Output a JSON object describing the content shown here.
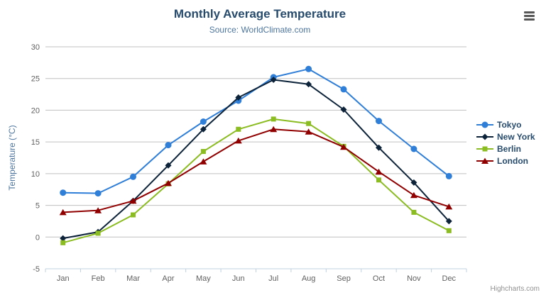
{
  "chart_data": {
    "type": "line",
    "title": "Monthly Average Temperature",
    "subtitle": "Source: WorldClimate.com",
    "categories": [
      "Jan",
      "Feb",
      "Mar",
      "Apr",
      "May",
      "Jun",
      "Jul",
      "Aug",
      "Sep",
      "Oct",
      "Nov",
      "Dec"
    ],
    "xlabel": "",
    "ylabel": "Temperature (°C)",
    "ylim": [
      -5,
      30
    ],
    "y_ticks": [
      -5,
      0,
      5,
      10,
      15,
      20,
      25,
      30
    ],
    "grid": "horizontal",
    "legend_position": "right",
    "series": [
      {
        "name": "Tokyo",
        "marker": "circle",
        "color": "#2f7ed8",
        "values": [
          7.0,
          6.9,
          9.5,
          14.5,
          18.2,
          21.5,
          25.2,
          26.5,
          23.3,
          18.3,
          13.9,
          9.6
        ]
      },
      {
        "name": "New York",
        "marker": "diamond",
        "color": "#0d233a",
        "values": [
          -0.2,
          0.8,
          5.7,
          11.3,
          17.0,
          22.0,
          24.8,
          24.1,
          20.1,
          14.1,
          8.6,
          2.5
        ]
      },
      {
        "name": "Berlin",
        "marker": "square",
        "color": "#8bbc21",
        "values": [
          -0.9,
          0.6,
          3.5,
          8.4,
          13.5,
          17.0,
          18.6,
          17.9,
          14.3,
          9.0,
          3.9,
          1.0
        ]
      },
      {
        "name": "London",
        "marker": "triangle",
        "color": "#910000",
        "values": [
          3.9,
          4.2,
          5.7,
          8.5,
          11.9,
          15.2,
          17.0,
          16.6,
          14.2,
          10.3,
          6.6,
          4.8
        ]
      }
    ]
  },
  "colors": {
    "title": "#274b6d",
    "subtitle": "#4d759e",
    "axis_label": "#606060",
    "axis_title": "#4d759e",
    "grid": "#c0c0c0",
    "axis_line": "#c0d0e0",
    "legend_text": "#274b6d",
    "credits": "#909090",
    "background": "#ffffff"
  },
  "icons": {
    "export_menu": "hamburger-icon"
  },
  "credits": {
    "label": "Highcharts.com"
  }
}
